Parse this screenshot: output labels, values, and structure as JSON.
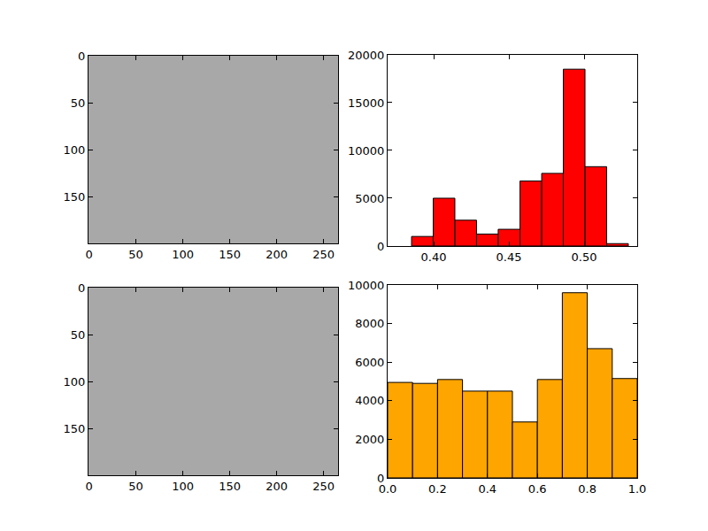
{
  "chart_data": [
    {
      "type": "image",
      "xlim": [
        -0.5,
        265.5
      ],
      "ylim": [
        199.5,
        -0.5
      ],
      "xticks": [
        0,
        50,
        100,
        150,
        200,
        250
      ],
      "yticks": [
        0,
        50,
        100,
        150
      ]
    },
    {
      "type": "histogram",
      "bins": [
        0.3853,
        0.3997,
        0.4141,
        0.4285,
        0.4429,
        0.4574,
        0.4718,
        0.4862,
        0.5006,
        0.515,
        0.5294
      ],
      "values": [
        1000,
        5000,
        2700,
        1250,
        1750,
        6800,
        7600,
        18500,
        8300,
        250
      ],
      "color": "#ff0000",
      "xlim": [
        0.3694,
        0.5353
      ],
      "ylim": [
        0,
        20000
      ],
      "xticks": [
        {
          "value": 0.4,
          "label": "0.40"
        },
        {
          "value": 0.45,
          "label": "0.45"
        },
        {
          "value": 0.5,
          "label": "0.50"
        }
      ],
      "yticks": [
        0,
        5000,
        10000,
        15000,
        20000
      ]
    },
    {
      "type": "image",
      "xlim": [
        -0.5,
        265.5
      ],
      "ylim": [
        199.5,
        -0.5
      ],
      "xticks": [
        0,
        50,
        100,
        150,
        200,
        250
      ],
      "yticks": [
        0,
        50,
        100,
        150
      ]
    },
    {
      "type": "histogram",
      "bins": [
        0,
        0.1,
        0.2,
        0.3,
        0.4,
        0.5,
        0.6,
        0.7,
        0.8,
        0.9,
        1
      ],
      "values": [
        4950,
        4900,
        5100,
        4500,
        4500,
        2900,
        5100,
        9600,
        6700,
        5150
      ],
      "color": "#ffa500",
      "xlim": [
        0,
        1
      ],
      "ylim": [
        0,
        10000
      ],
      "xticks": [
        {
          "value": 0,
          "label": "0.0"
        },
        {
          "value": 0.2,
          "label": "0.2"
        },
        {
          "value": 0.4,
          "label": "0.4"
        },
        {
          "value": 0.6,
          "label": "0.6"
        },
        {
          "value": 0.8,
          "label": "0.8"
        },
        {
          "value": 1,
          "label": "1.0"
        }
      ],
      "yticks": [
        0,
        2000,
        4000,
        6000,
        8000,
        10000
      ]
    }
  ]
}
